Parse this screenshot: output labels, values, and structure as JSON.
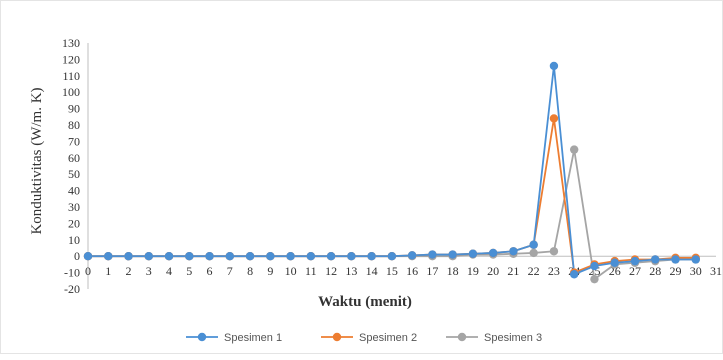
{
  "chart_data": {
    "type": "line",
    "title": "",
    "xlabel": "Waktu (menit)",
    "ylabel": "Konduktivitas (W/m. K)",
    "x": [
      0,
      1,
      2,
      3,
      4,
      5,
      6,
      7,
      8,
      9,
      10,
      11,
      12,
      13,
      14,
      15,
      16,
      17,
      18,
      19,
      20,
      21,
      22,
      23,
      24,
      25,
      26,
      27,
      28,
      29,
      30
    ],
    "x_tick_labels": [
      0,
      1,
      2,
      3,
      4,
      5,
      6,
      7,
      8,
      9,
      10,
      11,
      12,
      13,
      14,
      15,
      16,
      17,
      18,
      19,
      20,
      21,
      22,
      23,
      24,
      25,
      26,
      27,
      28,
      29,
      30,
      31
    ],
    "xlim": [
      0,
      31
    ],
    "ylim": [
      -20,
      130
    ],
    "y_ticks": [
      -20,
      -10,
      0,
      10,
      20,
      30,
      40,
      50,
      60,
      70,
      80,
      90,
      100,
      110,
      120,
      130
    ],
    "grid": false,
    "legend_position": "bottom",
    "series": [
      {
        "name": "Spesimen 1",
        "color": "#4a8fd4",
        "values": [
          0,
          0,
          0,
          0,
          0,
          0,
          0,
          0,
          0,
          0,
          0,
          0,
          0,
          0,
          0,
          0,
          0.5,
          1,
          1,
          1.5,
          2,
          3,
          7,
          116,
          -11,
          -6,
          -4,
          -3,
          -2,
          -2,
          -2
        ]
      },
      {
        "name": "Spesimen 2",
        "color": "#ed7d31",
        "values": [
          0,
          0,
          0,
          0,
          0,
          0,
          0,
          0,
          0,
          0,
          0,
          0,
          0,
          0,
          0,
          0,
          0.5,
          1,
          1,
          1.5,
          2,
          3,
          7,
          84,
          -10,
          -5,
          -3,
          -2,
          -2,
          -1,
          -1
        ]
      },
      {
        "name": "Spesimen 3",
        "color": "#a5a5a5",
        "values": [
          0,
          0,
          0,
          0,
          0,
          0,
          0,
          0,
          0,
          0,
          0,
          0,
          0,
          0,
          0,
          0,
          0,
          0,
          0,
          1,
          1,
          1.5,
          2,
          3,
          65,
          -14,
          -5,
          -4,
          -3,
          -2,
          -2
        ]
      }
    ]
  }
}
